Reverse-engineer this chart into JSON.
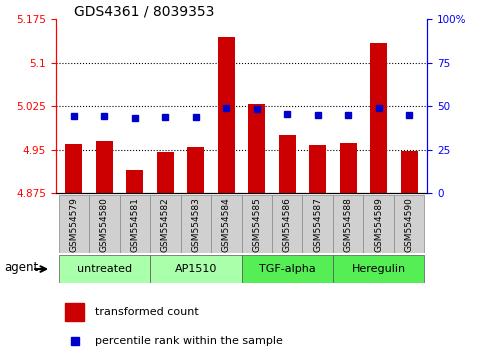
{
  "title": "GDS4361 / 8039353",
  "samples": [
    "GSM554579",
    "GSM554580",
    "GSM554581",
    "GSM554582",
    "GSM554583",
    "GSM554584",
    "GSM554585",
    "GSM554586",
    "GSM554587",
    "GSM554588",
    "GSM554589",
    "GSM554590"
  ],
  "bar_values": [
    4.96,
    4.965,
    4.915,
    4.945,
    4.955,
    5.145,
    5.028,
    4.975,
    4.958,
    4.962,
    5.135,
    4.948
  ],
  "percentile_values": [
    5.008,
    5.008,
    5.005,
    5.006,
    5.007,
    5.022,
    5.02,
    5.012,
    5.009,
    5.009,
    5.022,
    5.01
  ],
  "bar_bottom": 4.875,
  "ylim_left": [
    4.875,
    5.175
  ],
  "ylim_right": [
    0,
    100
  ],
  "yticks_left": [
    4.875,
    4.95,
    5.025,
    5.1,
    5.175
  ],
  "ytick_labels_left": [
    "4.875",
    "4.95",
    "5.025",
    "5.1",
    "5.175"
  ],
  "yticks_right": [
    0,
    25,
    50,
    75,
    100
  ],
  "ytick_labels_right": [
    "0",
    "25",
    "50",
    "75",
    "100%"
  ],
  "gridlines": [
    4.95,
    5.025,
    5.1
  ],
  "bar_color": "#CC0000",
  "percentile_color": "#0000CC",
  "agent_groups": [
    {
      "label": "untreated",
      "start": 0,
      "end": 2,
      "color": "#AAFFAA"
    },
    {
      "label": "AP1510",
      "start": 3,
      "end": 5,
      "color": "#AAFFAA"
    },
    {
      "label": "TGF-alpha",
      "start": 6,
      "end": 8,
      "color": "#55EE55"
    },
    {
      "label": "Heregulin",
      "start": 9,
      "end": 11,
      "color": "#55EE55"
    }
  ],
  "legend_bar_label": "transformed count",
  "legend_pct_label": "percentile rank within the sample",
  "agent_label": "agent"
}
